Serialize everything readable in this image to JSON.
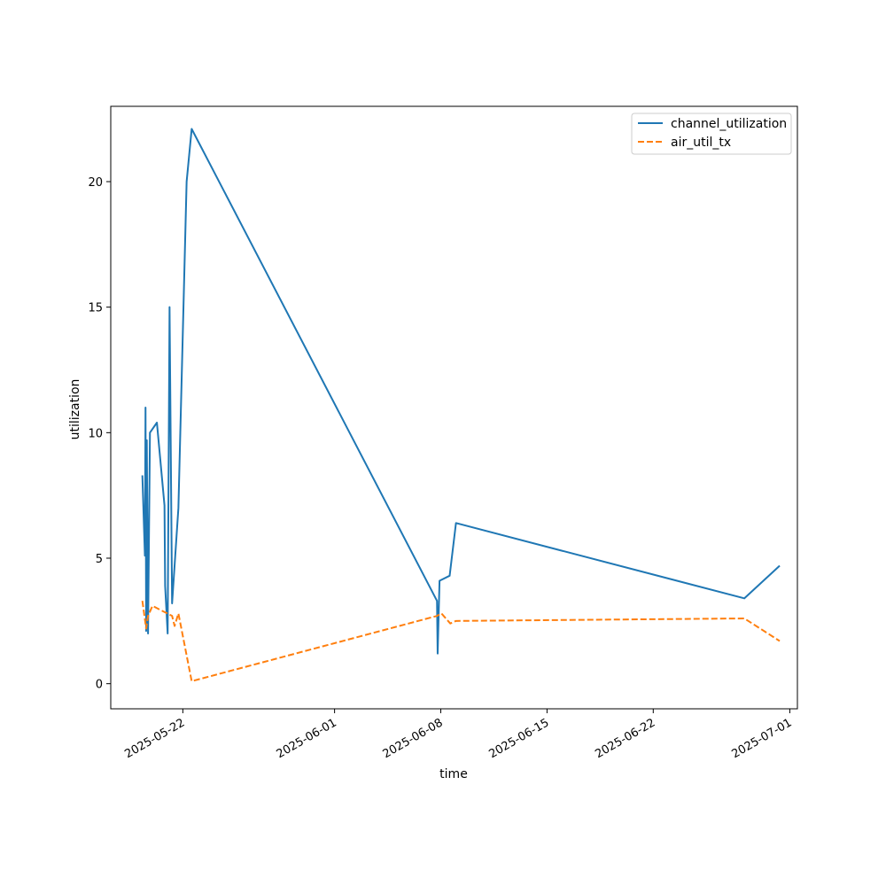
{
  "chart_data": {
    "type": "line",
    "xlabel": "time",
    "ylabel": "utilization",
    "x_axis_type": "date",
    "xlim": [
      "2025-05-17T06:00",
      "2025-07-01T12:00"
    ],
    "ylim": [
      -1,
      23
    ],
    "x_ticks": [
      "2025-05-22",
      "2025-06-01",
      "2025-06-08",
      "2025-06-15",
      "2025-06-22",
      "2025-07-01"
    ],
    "y_ticks": [
      0,
      5,
      10,
      15,
      20
    ],
    "legend_position": "top-right",
    "grid": false,
    "series": [
      {
        "name": "channel_utilization",
        "color": "#1f77b4",
        "dash": "solid",
        "points": [
          [
            "2025-05-19T08:00",
            8.3
          ],
          [
            "2025-05-19T12:00",
            5.1
          ],
          [
            "2025-05-19T13:00",
            11.0
          ],
          [
            "2025-05-19T14:00",
            2.1
          ],
          [
            "2025-05-19T15:00",
            9.7
          ],
          [
            "2025-05-19T17:00",
            2.0
          ],
          [
            "2025-05-19T20:00",
            10.0
          ],
          [
            "2025-05-20T07:00",
            10.4
          ],
          [
            "2025-05-20T19:00",
            7.1
          ],
          [
            "2025-05-20T20:00",
            3.9
          ],
          [
            "2025-05-21T00:00",
            2.0
          ],
          [
            "2025-05-21T03:00",
            15.0
          ],
          [
            "2025-05-21T07:00",
            3.2
          ],
          [
            "2025-05-21T17:00",
            7.0
          ],
          [
            "2025-05-21T20:00",
            10.0
          ],
          [
            "2025-05-22T06:00",
            20.0
          ],
          [
            "2025-05-22T14:00",
            22.1
          ],
          [
            "2025-06-07T18:00",
            3.3
          ],
          [
            "2025-06-07T19:00",
            1.2
          ],
          [
            "2025-06-07T22:00",
            4.1
          ],
          [
            "2025-06-08T14:00",
            4.3
          ],
          [
            "2025-06-09T00:00",
            6.4
          ],
          [
            "2025-06-28T00:00",
            3.4
          ],
          [
            "2025-06-30T08:00",
            4.7
          ]
        ]
      },
      {
        "name": "air_util_tx",
        "color": "#ff7f0e",
        "dash": "dashed",
        "points": [
          [
            "2025-05-19T08:00",
            3.3
          ],
          [
            "2025-05-19T14:00",
            2.2
          ],
          [
            "2025-05-19T17:00",
            2.7
          ],
          [
            "2025-05-20T00:00",
            3.1
          ],
          [
            "2025-05-21T07:00",
            2.7
          ],
          [
            "2025-05-21T11:00",
            2.3
          ],
          [
            "2025-05-21T17:00",
            2.8
          ],
          [
            "2025-05-22T14:00",
            0.1
          ],
          [
            "2025-06-07T18:00",
            2.7
          ],
          [
            "2025-06-08T01:00",
            2.8
          ],
          [
            "2025-06-08T15:00",
            2.4
          ],
          [
            "2025-06-09T00:00",
            2.5
          ],
          [
            "2025-06-28T00:00",
            2.6
          ],
          [
            "2025-06-30T08:00",
            1.7
          ]
        ]
      }
    ]
  }
}
